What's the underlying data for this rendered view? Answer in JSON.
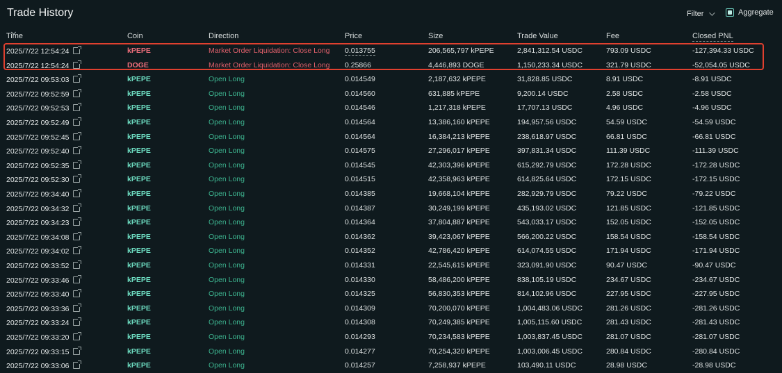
{
  "header": {
    "title": "Trade History",
    "filter_label": "Filter",
    "aggregate_label": "Aggregate"
  },
  "columns": {
    "time": "Time",
    "coin": "Coin",
    "direction": "Direction",
    "price": "Price",
    "size": "Size",
    "trade_value": "Trade Value",
    "fee": "Fee",
    "closed_pnl": "Closed PNL"
  },
  "colors": {
    "background": "#0f1a1e",
    "long_green": "#3db48f",
    "coin_green": "#6fe0c4",
    "liquidation_red": "#e0606b",
    "highlight_box": "#e0402f"
  },
  "rows": [
    {
      "time": "2025/7/22 12:54:24",
      "coin": "kPEPE",
      "direction": "Market Order Liquidation: Close Long",
      "price": "0.013755",
      "size": "206,565,797 kPEPE",
      "trade_value": "2,841,312.54 USDC",
      "fee": "793.09 USDC",
      "closed_pnl": "-127,394.33 USDC",
      "type": "liq"
    },
    {
      "time": "2025/7/22 12:54:24",
      "coin": "DOGE",
      "direction": "Market Order Liquidation: Close Long",
      "price": "0.25866",
      "size": "4,446,893 DOGE",
      "trade_value": "1,150,233.34 USDC",
      "fee": "321.79 USDC",
      "closed_pnl": "-52,054.05 USDC",
      "type": "liq"
    },
    {
      "time": "2025/7/22 09:53:03",
      "coin": "kPEPE",
      "direction": "Open Long",
      "price": "0.014549",
      "size": "2,187,632 kPEPE",
      "trade_value": "31,828.85 USDC",
      "fee": "8.91 USDC",
      "closed_pnl": "-8.91 USDC",
      "type": "open"
    },
    {
      "time": "2025/7/22 09:52:59",
      "coin": "kPEPE",
      "direction": "Open Long",
      "price": "0.014560",
      "size": "631,885 kPEPE",
      "trade_value": "9,200.14 USDC",
      "fee": "2.58 USDC",
      "closed_pnl": "-2.58 USDC",
      "type": "open"
    },
    {
      "time": "2025/7/22 09:52:53",
      "coin": "kPEPE",
      "direction": "Open Long",
      "price": "0.014546",
      "size": "1,217,318 kPEPE",
      "trade_value": "17,707.13 USDC",
      "fee": "4.96 USDC",
      "closed_pnl": "-4.96 USDC",
      "type": "open"
    },
    {
      "time": "2025/7/22 09:52:49",
      "coin": "kPEPE",
      "direction": "Open Long",
      "price": "0.014564",
      "size": "13,386,160 kPEPE",
      "trade_value": "194,957.56 USDC",
      "fee": "54.59 USDC",
      "closed_pnl": "-54.59 USDC",
      "type": "open"
    },
    {
      "time": "2025/7/22 09:52:45",
      "coin": "kPEPE",
      "direction": "Open Long",
      "price": "0.014564",
      "size": "16,384,213 kPEPE",
      "trade_value": "238,618.97 USDC",
      "fee": "66.81 USDC",
      "closed_pnl": "-66.81 USDC",
      "type": "open"
    },
    {
      "time": "2025/7/22 09:52:40",
      "coin": "kPEPE",
      "direction": "Open Long",
      "price": "0.014575",
      "size": "27,296,017 kPEPE",
      "trade_value": "397,831.34 USDC",
      "fee": "111.39 USDC",
      "closed_pnl": "-111.39 USDC",
      "type": "open"
    },
    {
      "time": "2025/7/22 09:52:35",
      "coin": "kPEPE",
      "direction": "Open Long",
      "price": "0.014545",
      "size": "42,303,396 kPEPE",
      "trade_value": "615,292.79 USDC",
      "fee": "172.28 USDC",
      "closed_pnl": "-172.28 USDC",
      "type": "open"
    },
    {
      "time": "2025/7/22 09:52:30",
      "coin": "kPEPE",
      "direction": "Open Long",
      "price": "0.014515",
      "size": "42,358,963 kPEPE",
      "trade_value": "614,825.64 USDC",
      "fee": "172.15 USDC",
      "closed_pnl": "-172.15 USDC",
      "type": "open"
    },
    {
      "time": "2025/7/22 09:34:40",
      "coin": "kPEPE",
      "direction": "Open Long",
      "price": "0.014385",
      "size": "19,668,104 kPEPE",
      "trade_value": "282,929.79 USDC",
      "fee": "79.22 USDC",
      "closed_pnl": "-79.22 USDC",
      "type": "open"
    },
    {
      "time": "2025/7/22 09:34:32",
      "coin": "kPEPE",
      "direction": "Open Long",
      "price": "0.014387",
      "size": "30,249,199 kPEPE",
      "trade_value": "435,193.02 USDC",
      "fee": "121.85 USDC",
      "closed_pnl": "-121.85 USDC",
      "type": "open"
    },
    {
      "time": "2025/7/22 09:34:23",
      "coin": "kPEPE",
      "direction": "Open Long",
      "price": "0.014364",
      "size": "37,804,887 kPEPE",
      "trade_value": "543,033.17 USDC",
      "fee": "152.05 USDC",
      "closed_pnl": "-152.05 USDC",
      "type": "open"
    },
    {
      "time": "2025/7/22 09:34:08",
      "coin": "kPEPE",
      "direction": "Open Long",
      "price": "0.014362",
      "size": "39,423,067 kPEPE",
      "trade_value": "566,200.22 USDC",
      "fee": "158.54 USDC",
      "closed_pnl": "-158.54 USDC",
      "type": "open"
    },
    {
      "time": "2025/7/22 09:34:02",
      "coin": "kPEPE",
      "direction": "Open Long",
      "price": "0.014352",
      "size": "42,786,420 kPEPE",
      "trade_value": "614,074.55 USDC",
      "fee": "171.94 USDC",
      "closed_pnl": "-171.94 USDC",
      "type": "open"
    },
    {
      "time": "2025/7/22 09:33:52",
      "coin": "kPEPE",
      "direction": "Open Long",
      "price": "0.014331",
      "size": "22,545,615 kPEPE",
      "trade_value": "323,091.90 USDC",
      "fee": "90.47 USDC",
      "closed_pnl": "-90.47 USDC",
      "type": "open"
    },
    {
      "time": "2025/7/22 09:33:46",
      "coin": "kPEPE",
      "direction": "Open Long",
      "price": "0.014330",
      "size": "58,486,200 kPEPE",
      "trade_value": "838,105.19 USDC",
      "fee": "234.67 USDC",
      "closed_pnl": "-234.67 USDC",
      "type": "open"
    },
    {
      "time": "2025/7/22 09:33:40",
      "coin": "kPEPE",
      "direction": "Open Long",
      "price": "0.014325",
      "size": "56,830,353 kPEPE",
      "trade_value": "814,102.96 USDC",
      "fee": "227.95 USDC",
      "closed_pnl": "-227.95 USDC",
      "type": "open"
    },
    {
      "time": "2025/7/22 09:33:36",
      "coin": "kPEPE",
      "direction": "Open Long",
      "price": "0.014309",
      "size": "70,200,070 kPEPE",
      "trade_value": "1,004,483.06 USDC",
      "fee": "281.26 USDC",
      "closed_pnl": "-281.26 USDC",
      "type": "open"
    },
    {
      "time": "2025/7/22 09:33:24",
      "coin": "kPEPE",
      "direction": "Open Long",
      "price": "0.014308",
      "size": "70,249,385 kPEPE",
      "trade_value": "1,005,115.60 USDC",
      "fee": "281.43 USDC",
      "closed_pnl": "-281.43 USDC",
      "type": "open"
    },
    {
      "time": "2025/7/22 09:33:20",
      "coin": "kPEPE",
      "direction": "Open Long",
      "price": "0.014293",
      "size": "70,234,583 kPEPE",
      "trade_value": "1,003,837.45 USDC",
      "fee": "281.07 USDC",
      "closed_pnl": "-281.07 USDC",
      "type": "open"
    },
    {
      "time": "2025/7/22 09:33:15",
      "coin": "kPEPE",
      "direction": "Open Long",
      "price": "0.014277",
      "size": "70,254,320 kPEPE",
      "trade_value": "1,003,006.45 USDC",
      "fee": "280.84 USDC",
      "closed_pnl": "-280.84 USDC",
      "type": "open"
    },
    {
      "time": "2025/7/22 09:33:06",
      "coin": "kPEPE",
      "direction": "Open Long",
      "price": "0.014257",
      "size": "7,258,937 kPEPE",
      "trade_value": "103,490.11 USDC",
      "fee": "28.98 USDC",
      "closed_pnl": "-28.98 USDC",
      "type": "open"
    }
  ]
}
